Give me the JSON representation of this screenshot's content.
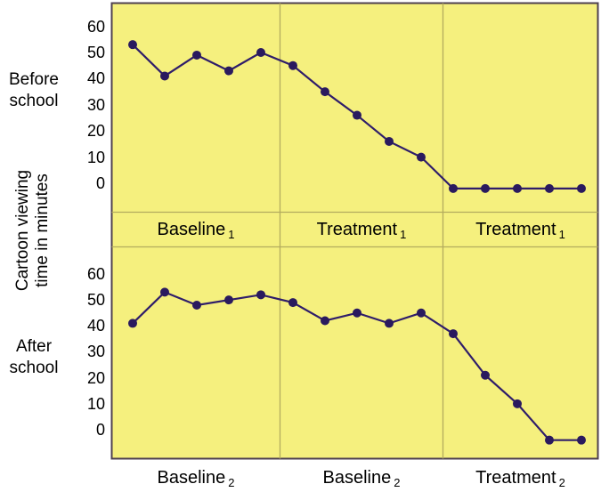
{
  "ylabel": {
    "line1": "Cartoon viewing",
    "line2": "time in minutes"
  },
  "left_labels": {
    "top": {
      "line1": "Before",
      "line2": "school"
    },
    "bottom": {
      "line1": "After",
      "line2": "school"
    }
  },
  "chart_data": {
    "type": "line",
    "title": "",
    "ylabel": "Cartoon viewing time in minutes",
    "yticks": [
      60,
      50,
      40,
      30,
      20,
      10,
      0
    ],
    "ylim": [
      -8,
      65
    ],
    "grid": false,
    "legend": "none",
    "x_unit": "observation sessions (15 per panel)",
    "phase_boundaries_after_point": [
      5,
      10
    ],
    "panels": [
      {
        "name": "Before school",
        "values": [
          53,
          41,
          49,
          43,
          50,
          45,
          35,
          26,
          16,
          10,
          -2,
          -2,
          -2,
          -2,
          -2
        ],
        "phase_labels": [
          {
            "text": "Baseline",
            "sub": "1"
          },
          {
            "text": "Treatment",
            "sub": "1"
          },
          {
            "text": "Treatment",
            "sub": "1"
          }
        ]
      },
      {
        "name": "After school",
        "values": [
          41,
          53,
          48,
          50,
          52,
          49,
          42,
          45,
          41,
          45,
          37,
          21,
          10,
          -4,
          -4
        ],
        "phase_labels": [
          {
            "text": "Baseline",
            "sub": "2"
          },
          {
            "text": "Baseline",
            "sub": "2"
          },
          {
            "text": "Treatment",
            "sub": "2"
          }
        ]
      }
    ],
    "colors": {
      "background": "#f5f07e",
      "line": "#2f1d6a",
      "point": "#2a1a5e",
      "frame": "#4e4050",
      "divider": "#b3ab5e",
      "text": "#000000"
    }
  }
}
